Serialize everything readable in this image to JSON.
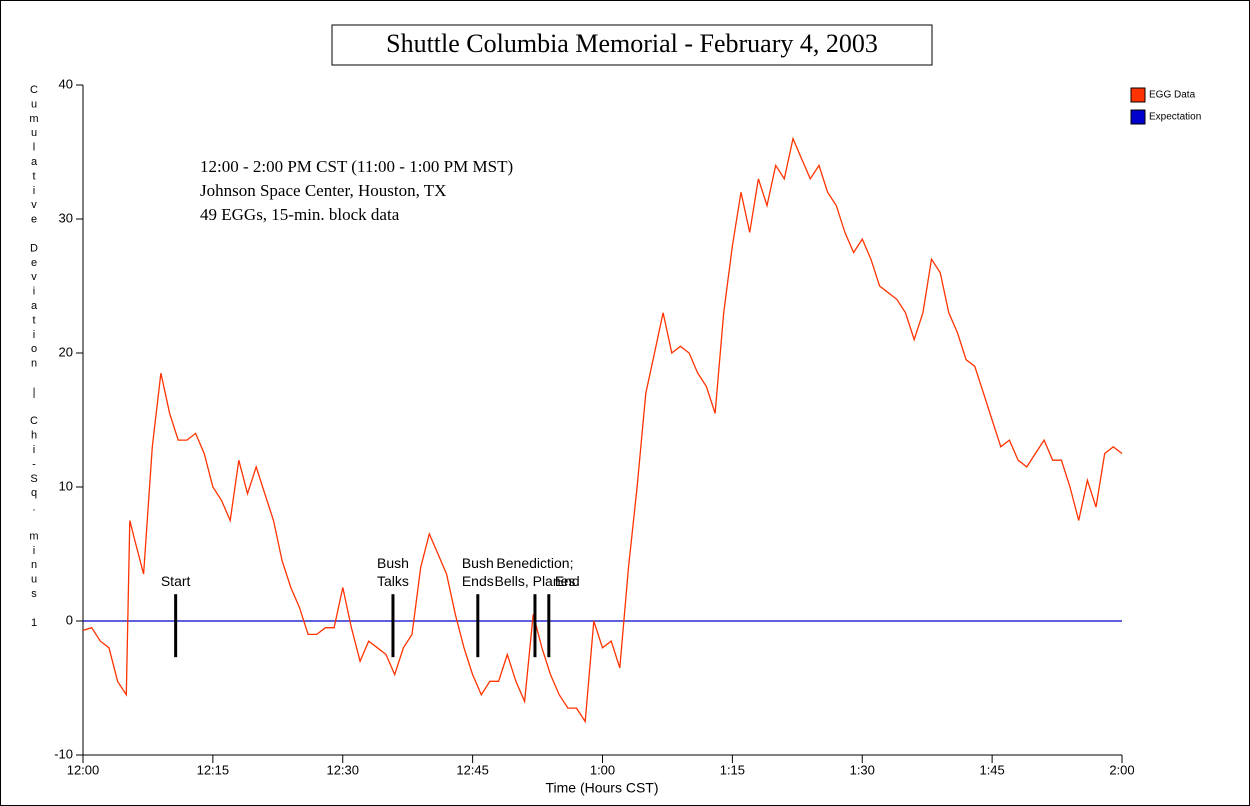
{
  "chart_data": {
    "type": "line",
    "title": "Shuttle Columbia Memorial - February 4, 2003",
    "annotations": [
      "12:00 - 2:00 PM CST (11:00 - 1:00 PM MST)",
      "Johnson Space Center, Houston, TX",
      "49 EGGs, 15-min. block data"
    ],
    "xlabel": "Time (Hours CST)",
    "ylabel": "Cumulative Deviation | Chi-Sq. minus 1",
    "xlim": [
      0,
      120
    ],
    "xticks": [
      {
        "value": 0,
        "label": "12:00"
      },
      {
        "value": 15,
        "label": "12:15"
      },
      {
        "value": 30,
        "label": "12:30"
      },
      {
        "value": 45,
        "label": "12:45"
      },
      {
        "value": 60,
        "label": "1:00"
      },
      {
        "value": 75,
        "label": "1:15"
      },
      {
        "value": 90,
        "label": "1:30"
      },
      {
        "value": 105,
        "label": "1:45"
      },
      {
        "value": 120,
        "label": "2:00"
      }
    ],
    "ylim": [
      -10,
      40
    ],
    "yticks": [
      -10,
      0,
      10,
      20,
      30,
      40
    ],
    "legend": "top-right",
    "series": [
      {
        "name": "EGG Data",
        "color": "#ff3300",
        "x": [
          0,
          1,
          2,
          3,
          4,
          5,
          5.4,
          6,
          7,
          8,
          9,
          10,
          11,
          12,
          13,
          14,
          15,
          16,
          17,
          18,
          19,
          20,
          21,
          22,
          23,
          24,
          25,
          26,
          27,
          28,
          29,
          30,
          31,
          32,
          33,
          34,
          35,
          36,
          37,
          38,
          39,
          40,
          41,
          42,
          43,
          44,
          45,
          46,
          47,
          48,
          49,
          50,
          51,
          52,
          53,
          54,
          55,
          56,
          57,
          58,
          59,
          60,
          61,
          62,
          63,
          64,
          65,
          66,
          67,
          68,
          69,
          70,
          71,
          72,
          73,
          74,
          75,
          76,
          77,
          78,
          79,
          80,
          81,
          82,
          83,
          84,
          85,
          86,
          87,
          88,
          89,
          90,
          91,
          92,
          93,
          94,
          95,
          96,
          97,
          98,
          99,
          100,
          101,
          102,
          103,
          104,
          105,
          106,
          107,
          108,
          109,
          110,
          111,
          112,
          113,
          114,
          115,
          116,
          117,
          118,
          119,
          120
        ],
        "values": [
          -0.7,
          -0.5,
          -1.5,
          -2,
          -4.5,
          -5.5,
          7.5,
          6,
          3.5,
          13,
          18.5,
          15.5,
          13.5,
          13.5,
          14,
          12.5,
          10,
          9,
          7.5,
          12,
          9.5,
          11.5,
          9.5,
          7.5,
          4.5,
          2.5,
          1,
          -1,
          -1,
          -0.5,
          -0.5,
          2.5,
          -0.5,
          -3,
          -1.5,
          -2,
          -2.5,
          -4,
          -2,
          -1,
          4,
          6.5,
          5,
          3.5,
          0.5,
          -2,
          -4,
          -5.5,
          -4.5,
          -4.5,
          -2.5,
          -4.5,
          -6,
          0.5,
          -2,
          -4,
          -5.5,
          -6.5,
          -6.5,
          -7.5,
          0,
          -2,
          -1.5,
          -3.5,
          4,
          10,
          17,
          20,
          23,
          20,
          20.5,
          20,
          18.5,
          17.5,
          15.5,
          23,
          28,
          32,
          29,
          33,
          31,
          34,
          33,
          36,
          34.5,
          33,
          34,
          32,
          31,
          29,
          27.5,
          28.5,
          27,
          25,
          24.5,
          24,
          23,
          21,
          23,
          27,
          26,
          23,
          21.5,
          19.5,
          19,
          17,
          15,
          13,
          13.5,
          12,
          11.5,
          12.5,
          13.5,
          12,
          12,
          10,
          7.5,
          10.5,
          8.5,
          12.5,
          13,
          12.5
        ]
      },
      {
        "name": "Expectation",
        "color": "#0000cc",
        "x": [
          0,
          120
        ],
        "values": [
          0,
          0
        ]
      }
    ],
    "events": [
      {
        "label": [
          "Start"
        ],
        "x": 10.7
      },
      {
        "label": [
          "Bush",
          "Talks"
        ],
        "x": 35.8
      },
      {
        "label": [
          "Bush",
          "Ends"
        ],
        "x": 45.6
      },
      {
        "label": [
          "Benediction;",
          "Bells, Planes"
        ],
        "x": 52.2
      },
      {
        "label": [
          "End"
        ],
        "x": 53.8
      }
    ],
    "event_span": [
      -2.7,
      2
    ]
  }
}
